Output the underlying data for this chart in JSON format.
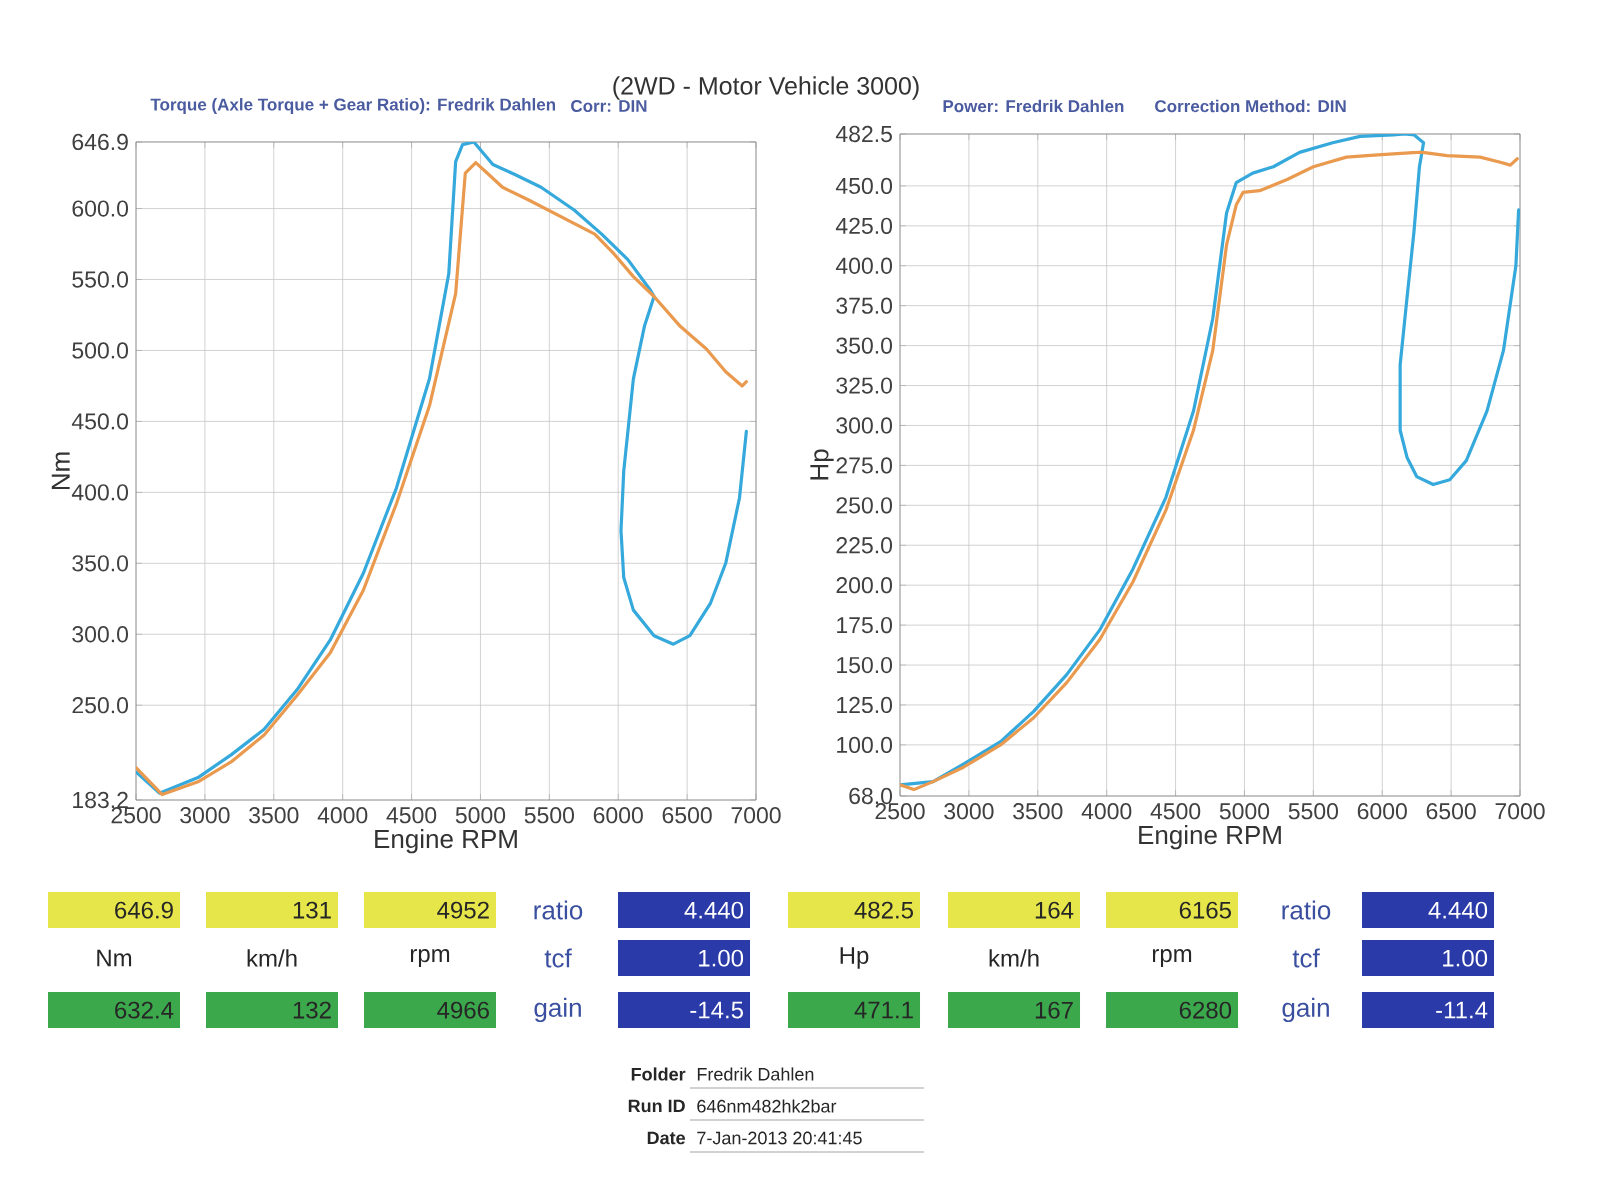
{
  "chart_data": [
    {
      "type": "line",
      "title": "(2WD - Motor Vehicle 3000)",
      "subtitle": "Torque (Axle Torque + Gear Ratio): Fredrik Dahlen",
      "xlabel": "Engine RPM",
      "ylabel": "Nm",
      "xlim": [
        2500,
        7000
      ],
      "ylim": [
        183.2,
        646.9
      ],
      "xticks": [
        2500,
        3000,
        3500,
        4000,
        4500,
        5000,
        5500,
        6000,
        6500,
        7000
      ],
      "yticks": [
        183.2,
        {
          "value": 250,
          "label": "250.0"
        },
        {
          "value": 300,
          "label": "300.0"
        },
        {
          "value": 350,
          "label": "350.0"
        },
        {
          "value": 400,
          "label": "400.0"
        },
        {
          "value": 450,
          "label": "450.0"
        },
        {
          "value": 500,
          "label": "500.0"
        },
        {
          "value": 550,
          "label": "550.0"
        },
        {
          "value": 600,
          "label": "600.0"
        },
        646.9
      ],
      "grid": true,
      "series": [
        {
          "color": "#35a9dc",
          "x": [
            2500,
            2670,
            2950,
            3190,
            3430,
            3670,
            3910,
            4150,
            4390,
            4630,
            4770,
            4820,
            4870,
            4952,
            5090,
            5250,
            5440,
            5680,
            5880,
            6070,
            6230,
            6260,
            6190,
            6110,
            6040,
            6020,
            6040,
            6110,
            6260,
            6400,
            6520,
            6670,
            6780,
            6880,
            6930
          ],
          "values": [
            203,
            188,
            199,
            215,
            233,
            261,
            296,
            343,
            403,
            480,
            554,
            633,
            645,
            646.9,
            631,
            624,
            615,
            599,
            582,
            564,
            543,
            538,
            517,
            480,
            415,
            373,
            340,
            317,
            299,
            293,
            299,
            322,
            350,
            396,
            443
          ]
        },
        {
          "color": "#e99a4f",
          "x": [
            2500,
            2690,
            2950,
            3190,
            3430,
            3670,
            3910,
            4150,
            4390,
            4630,
            4820,
            4890,
            4966,
            5060,
            5160,
            5350,
            5590,
            5830,
            5970,
            6110,
            6260,
            6450,
            6640,
            6780,
            6900,
            6930
          ],
          "values": [
            206,
            187,
            196,
            210,
            229,
            257,
            287,
            331,
            392,
            461,
            540,
            625,
            632.4,
            624,
            615,
            606,
            594,
            582,
            568,
            552,
            538,
            517,
            501,
            485,
            475,
            478
          ]
        }
      ],
      "annotations": [
        "Corr: DIN",
        "646.9",
        "131",
        "4952",
        "ratio",
        "4.440",
        "Nm",
        "km/h",
        "rpm",
        "tcf",
        "1.00",
        "632.4",
        "132",
        "4966",
        "gain",
        "-14.5"
      ]
    },
    {
      "type": "line",
      "subtitle": "Power: Fredrik Dahlen",
      "xlabel": "Engine RPM",
      "ylabel": "Hp",
      "xlim": [
        2500,
        7000
      ],
      "ylim": [
        68,
        482.5
      ],
      "xticks": [
        2500,
        3000,
        3500,
        4000,
        4500,
        5000,
        5500,
        6000,
        6500,
        7000
      ],
      "yticks": [
        {
          "value": 68,
          "label": "68.0"
        },
        {
          "value": 100,
          "label": "100.0"
        },
        {
          "value": 125,
          "label": "125.0"
        },
        {
          "value": 150,
          "label": "150.0"
        },
        {
          "value": 175,
          "label": "175.0"
        },
        {
          "value": 200,
          "label": "200.0"
        },
        {
          "value": 225,
          "label": "225.0"
        },
        {
          "value": 250,
          "label": "250.0"
        },
        {
          "value": 275,
          "label": "275.0"
        },
        {
          "value": 300,
          "label": "300.0"
        },
        {
          "value": 325,
          "label": "325.0"
        },
        {
          "value": 350,
          "label": "350.0"
        },
        {
          "value": 375,
          "label": "375.0"
        },
        {
          "value": 400,
          "label": "400.0"
        },
        {
          "value": 425,
          "label": "425.0"
        },
        {
          "value": 450,
          "label": "450.0"
        },
        482.5
      ],
      "grid": true,
      "series": [
        {
          "color": "#35a9dc",
          "x": [
            2500,
            2740,
            2960,
            3230,
            3470,
            3710,
            3950,
            4190,
            4430,
            4630,
            4770,
            4870,
            4940,
            5060,
            5210,
            5400,
            5640,
            5840,
            6080,
            6165,
            6230,
            6300,
            6270,
            6230,
            6180,
            6130,
            6130,
            6180,
            6250,
            6370,
            6490,
            6610,
            6760,
            6880,
            6970,
            6990
          ],
          "values": [
            75,
            77,
            88,
            102,
            121,
            144,
            172,
            210,
            255,
            309,
            367,
            433,
            452,
            458,
            462,
            471,
            477,
            481,
            482,
            482.5,
            482,
            477,
            462,
            421,
            380,
            338,
            297,
            280,
            268,
            263,
            266,
            278,
            309,
            347,
            400,
            435
          ]
        },
        {
          "color": "#e99a4f",
          "x": [
            2500,
            2600,
            2740,
            2960,
            3230,
            3470,
            3710,
            3950,
            4190,
            4430,
            4630,
            4770,
            4870,
            4940,
            4990,
            5110,
            5310,
            5500,
            5740,
            5890,
            6080,
            6280,
            6470,
            6710,
            6850,
            6930,
            6980
          ],
          "values": [
            75,
            72,
            77,
            86,
            100,
            117,
            139,
            166,
            202,
            247,
            297,
            347,
            413,
            438,
            446,
            447,
            454,
            462,
            468,
            469,
            470,
            471.1,
            469,
            468,
            465,
            463,
            467
          ]
        }
      ],
      "annotations": [
        "Correction Method: DIN",
        "482.5",
        "164",
        "6165",
        "ratio",
        "4.440",
        "Hp",
        "km/h",
        "rpm",
        "tcf",
        "1.00",
        "471.1",
        "167",
        "6280",
        "gain",
        "-11.4",
        "Folder",
        "Fredrik Dahlen",
        "Run ID",
        "646nm482hk2bar",
        "Date",
        "7-Jan-2013 20:41:45"
      ]
    }
  ]
}
